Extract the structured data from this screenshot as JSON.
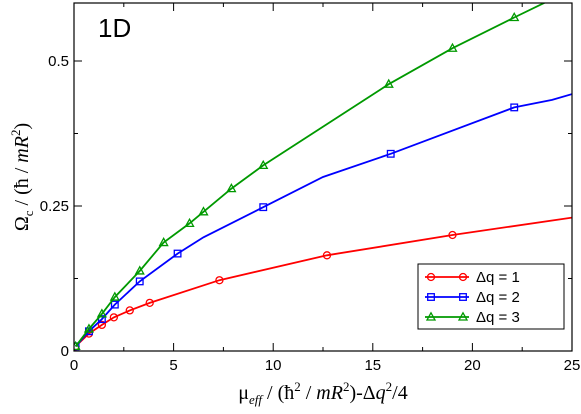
{
  "chart_data": {
    "type": "line",
    "panel_label": "1D",
    "xlabel": {
      "parts": [
        {
          "t": "μ",
          "sub": false
        },
        {
          "t": "eff",
          "sub": true
        },
        {
          "t": " / (",
          "sub": false
        },
        {
          "t": "ħ",
          "sup": false
        },
        {
          "t": "2",
          "sup": true
        },
        {
          "t": " / mR",
          "sup": false
        },
        {
          "t": "2",
          "sup": true
        },
        {
          "t": ")-Δq",
          "sup": false
        },
        {
          "t": "2",
          "sup": true
        },
        {
          "t": "/4",
          "sup": false
        }
      ],
      "text": "μeff / (ħ2 / mR2)-Δq2/4"
    },
    "ylabel": {
      "text": "Ωc / (ħ / mR2)"
    },
    "xlim": [
      0,
      25
    ],
    "ylim": [
      0,
      0.6
    ],
    "xticks": [
      0,
      5,
      10,
      15,
      20,
      25
    ],
    "xtick_labels": [
      "0",
      "5",
      "10",
      "15",
      "20",
      "25"
    ],
    "yticks": [
      0,
      0.25,
      0.5
    ],
    "ytick_labels": [
      "0",
      "0.25",
      "0.5"
    ],
    "grid": false,
    "legend_position": "lower-right",
    "series": [
      {
        "name": "Δq = 1",
        "color": "#ff0000",
        "marker": "circle",
        "x": [
          0.08,
          0.75,
          1.4,
          2.0,
          2.8,
          3.8,
          7.3,
          12.7,
          19.0,
          25.0
        ],
        "y": [
          0.008,
          0.03,
          0.045,
          0.058,
          0.07,
          0.083,
          0.122,
          0.165,
          0.2,
          0.23
        ],
        "markers": [
          true,
          true,
          true,
          true,
          true,
          true,
          true,
          true,
          true,
          false
        ]
      },
      {
        "name": "Δq = 2",
        "color": "#0000ff",
        "marker": "square",
        "x": [
          0.08,
          0.75,
          1.4,
          2.05,
          3.3,
          5.2,
          6.5,
          9.5,
          12.5,
          15.9,
          22.1,
          24.0,
          25.0
        ],
        "y": [
          0.008,
          0.034,
          0.055,
          0.08,
          0.12,
          0.168,
          0.196,
          0.248,
          0.3,
          0.34,
          0.42,
          0.433,
          0.443
        ],
        "markers": [
          true,
          true,
          true,
          true,
          true,
          true,
          false,
          true,
          false,
          true,
          true,
          false,
          false
        ]
      },
      {
        "name": "Δq = 3",
        "color": "#009900",
        "marker": "triangle",
        "x": [
          0.08,
          0.75,
          1.4,
          2.05,
          3.3,
          4.5,
          5.8,
          6.5,
          7.9,
          9.5,
          15.8,
          19.0,
          22.1,
          24.5
        ],
        "y": [
          0.008,
          0.038,
          0.064,
          0.093,
          0.138,
          0.187,
          0.22,
          0.24,
          0.28,
          0.32,
          0.46,
          0.522,
          0.575,
          0.615
        ],
        "markers": [
          true,
          true,
          true,
          true,
          true,
          true,
          true,
          true,
          true,
          true,
          true,
          true,
          true,
          false
        ]
      }
    ]
  }
}
